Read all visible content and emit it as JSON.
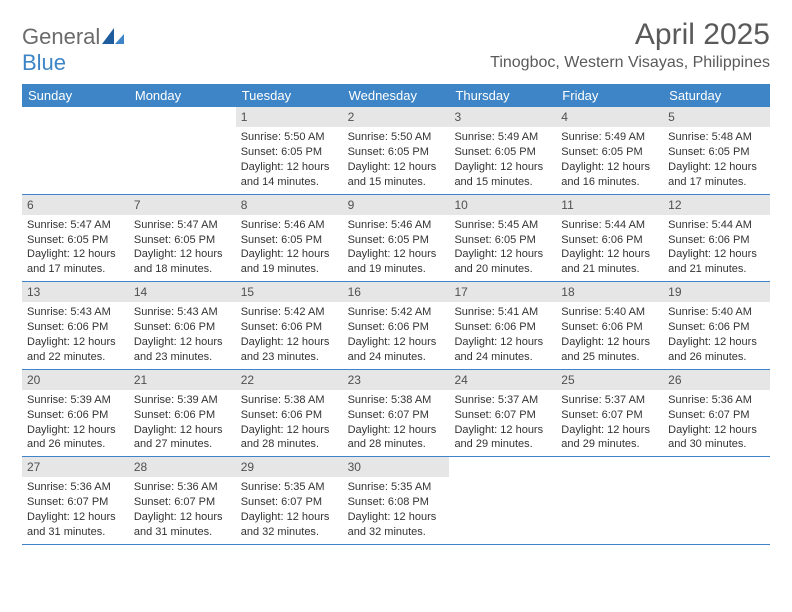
{
  "brand": {
    "general": "General",
    "blue": "Blue"
  },
  "title": {
    "month": "April 2025",
    "location": "Tinogboc, Western Visayas, Philippines"
  },
  "weekdays": [
    "Sunday",
    "Monday",
    "Tuesday",
    "Wednesday",
    "Thursday",
    "Friday",
    "Saturday"
  ],
  "colors": {
    "header_bar": "#3d85c6",
    "day_number_bg": "#e6e6e6",
    "text": "#333333",
    "title_text": "#5a5a5a",
    "row_divider": "#3d85c6",
    "background": "#ffffff"
  },
  "layout": {
    "columns": 7,
    "rows": 5,
    "start_weekday_index": 2
  },
  "days": [
    {
      "n": "1",
      "sunrise": "5:50 AM",
      "sunset": "6:05 PM",
      "daylight": "12 hours and 14 minutes."
    },
    {
      "n": "2",
      "sunrise": "5:50 AM",
      "sunset": "6:05 PM",
      "daylight": "12 hours and 15 minutes."
    },
    {
      "n": "3",
      "sunrise": "5:49 AM",
      "sunset": "6:05 PM",
      "daylight": "12 hours and 15 minutes."
    },
    {
      "n": "4",
      "sunrise": "5:49 AM",
      "sunset": "6:05 PM",
      "daylight": "12 hours and 16 minutes."
    },
    {
      "n": "5",
      "sunrise": "5:48 AM",
      "sunset": "6:05 PM",
      "daylight": "12 hours and 17 minutes."
    },
    {
      "n": "6",
      "sunrise": "5:47 AM",
      "sunset": "6:05 PM",
      "daylight": "12 hours and 17 minutes."
    },
    {
      "n": "7",
      "sunrise": "5:47 AM",
      "sunset": "6:05 PM",
      "daylight": "12 hours and 18 minutes."
    },
    {
      "n": "8",
      "sunrise": "5:46 AM",
      "sunset": "6:05 PM",
      "daylight": "12 hours and 19 minutes."
    },
    {
      "n": "9",
      "sunrise": "5:46 AM",
      "sunset": "6:05 PM",
      "daylight": "12 hours and 19 minutes."
    },
    {
      "n": "10",
      "sunrise": "5:45 AM",
      "sunset": "6:05 PM",
      "daylight": "12 hours and 20 minutes."
    },
    {
      "n": "11",
      "sunrise": "5:44 AM",
      "sunset": "6:06 PM",
      "daylight": "12 hours and 21 minutes."
    },
    {
      "n": "12",
      "sunrise": "5:44 AM",
      "sunset": "6:06 PM",
      "daylight": "12 hours and 21 minutes."
    },
    {
      "n": "13",
      "sunrise": "5:43 AM",
      "sunset": "6:06 PM",
      "daylight": "12 hours and 22 minutes."
    },
    {
      "n": "14",
      "sunrise": "5:43 AM",
      "sunset": "6:06 PM",
      "daylight": "12 hours and 23 minutes."
    },
    {
      "n": "15",
      "sunrise": "5:42 AM",
      "sunset": "6:06 PM",
      "daylight": "12 hours and 23 minutes."
    },
    {
      "n": "16",
      "sunrise": "5:42 AM",
      "sunset": "6:06 PM",
      "daylight": "12 hours and 24 minutes."
    },
    {
      "n": "17",
      "sunrise": "5:41 AM",
      "sunset": "6:06 PM",
      "daylight": "12 hours and 24 minutes."
    },
    {
      "n": "18",
      "sunrise": "5:40 AM",
      "sunset": "6:06 PM",
      "daylight": "12 hours and 25 minutes."
    },
    {
      "n": "19",
      "sunrise": "5:40 AM",
      "sunset": "6:06 PM",
      "daylight": "12 hours and 26 minutes."
    },
    {
      "n": "20",
      "sunrise": "5:39 AM",
      "sunset": "6:06 PM",
      "daylight": "12 hours and 26 minutes."
    },
    {
      "n": "21",
      "sunrise": "5:39 AM",
      "sunset": "6:06 PM",
      "daylight": "12 hours and 27 minutes."
    },
    {
      "n": "22",
      "sunrise": "5:38 AM",
      "sunset": "6:06 PM",
      "daylight": "12 hours and 28 minutes."
    },
    {
      "n": "23",
      "sunrise": "5:38 AM",
      "sunset": "6:07 PM",
      "daylight": "12 hours and 28 minutes."
    },
    {
      "n": "24",
      "sunrise": "5:37 AM",
      "sunset": "6:07 PM",
      "daylight": "12 hours and 29 minutes."
    },
    {
      "n": "25",
      "sunrise": "5:37 AM",
      "sunset": "6:07 PM",
      "daylight": "12 hours and 29 minutes."
    },
    {
      "n": "26",
      "sunrise": "5:36 AM",
      "sunset": "6:07 PM",
      "daylight": "12 hours and 30 minutes."
    },
    {
      "n": "27",
      "sunrise": "5:36 AM",
      "sunset": "6:07 PM",
      "daylight": "12 hours and 31 minutes."
    },
    {
      "n": "28",
      "sunrise": "5:36 AM",
      "sunset": "6:07 PM",
      "daylight": "12 hours and 31 minutes."
    },
    {
      "n": "29",
      "sunrise": "5:35 AM",
      "sunset": "6:07 PM",
      "daylight": "12 hours and 32 minutes."
    },
    {
      "n": "30",
      "sunrise": "5:35 AM",
      "sunset": "6:08 PM",
      "daylight": "12 hours and 32 minutes."
    }
  ],
  "labels": {
    "sunrise": "Sunrise: ",
    "sunset": "Sunset: ",
    "daylight": "Daylight: "
  }
}
